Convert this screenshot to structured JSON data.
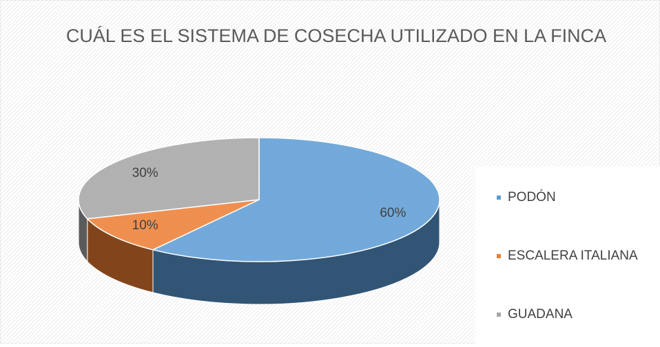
{
  "chart_data": {
    "type": "pie",
    "title": "CUÁL ES EL SISTEMA DE COSECHA UTILIZADO EN LA FINCA",
    "categories": [
      "PODÓN",
      "ESCALERA ITALIANA",
      "GUADANA"
    ],
    "values": [
      60,
      10,
      30
    ],
    "value_labels": [
      "60%",
      "10%",
      "30%"
    ],
    "colors": [
      "#5b9bd5",
      "#ed7d31",
      "#a5a5a5"
    ],
    "legend": "right"
  }
}
